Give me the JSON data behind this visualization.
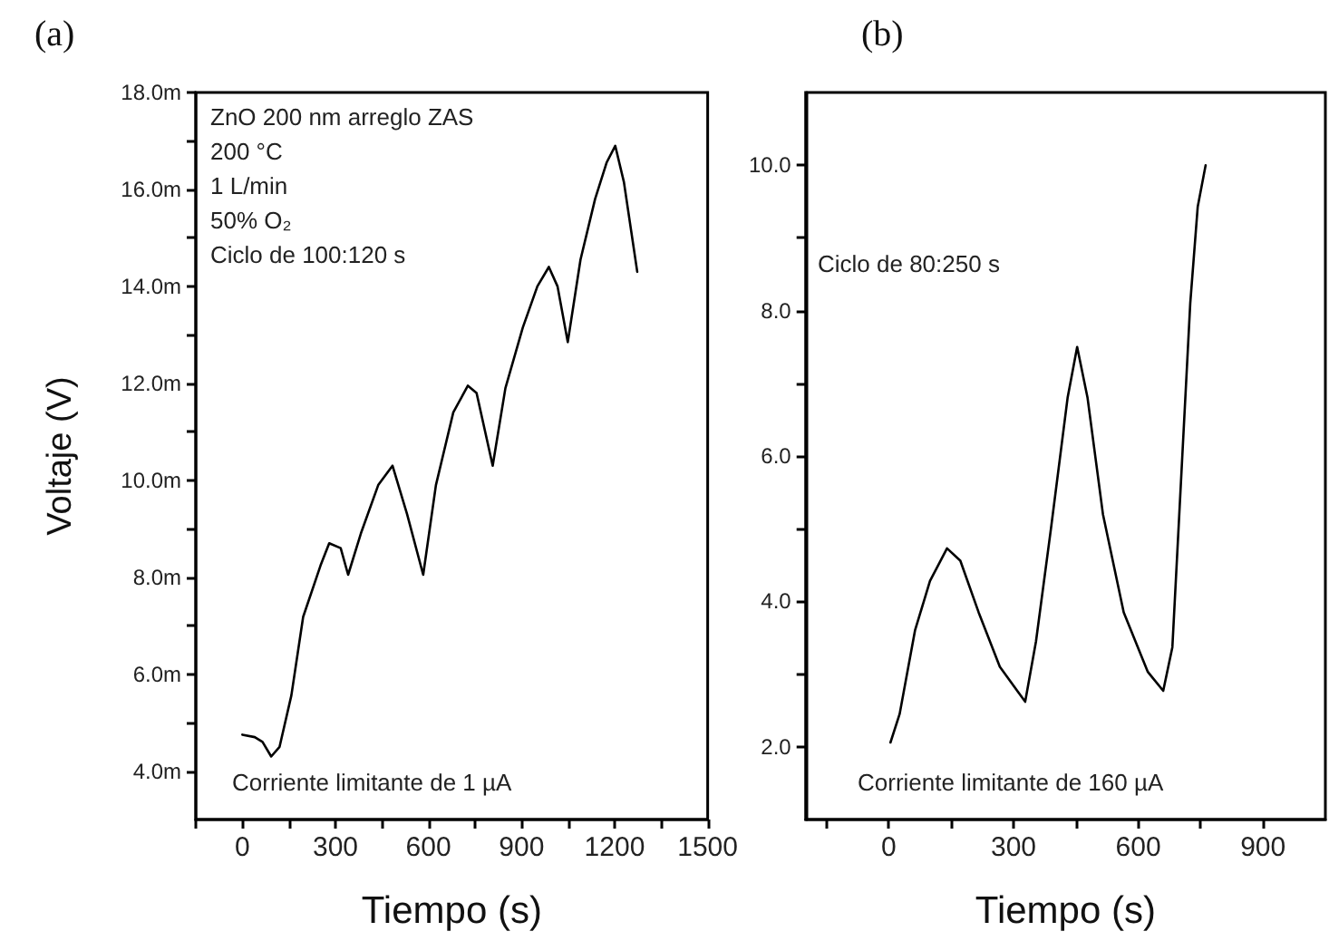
{
  "chart_data": [
    {
      "type": "line",
      "title": "(a)",
      "xlabel": "Tiempo (s)",
      "ylabel": "Voltaje (V)",
      "line_style": "solid",
      "marker": "none",
      "annotations": [
        "ZnO 200 nm arreglo ZAS",
        "200 °C",
        "1 L/min",
        "50% O₂",
        "Ciclo de 100:120 s",
        "Corriente limitante de 1 µA"
      ],
      "xlim": [
        -150,
        1500
      ],
      "ylim": [
        3,
        18
      ],
      "xticks": [
        {
          "value": -150,
          "label": null
        },
        0,
        {
          "value": 150,
          "label": null
        },
        300,
        {
          "value": 450,
          "label": null
        },
        600,
        {
          "value": 750,
          "label": null
        },
        900,
        {
          "value": 1050,
          "label": null
        },
        1200,
        {
          "value": 1350,
          "label": null
        },
        1500
      ],
      "yticks": [
        {
          "value": 4,
          "label": "4.0m"
        },
        {
          "value": 5,
          "label": null
        },
        {
          "value": 6,
          "label": "6.0m"
        },
        {
          "value": 7,
          "label": null
        },
        {
          "value": 8,
          "label": "8.0m"
        },
        {
          "value": 9,
          "label": null
        },
        {
          "value": 10,
          "label": "10.0m"
        },
        {
          "value": 11,
          "label": null
        },
        {
          "value": 12,
          "label": "12.0m"
        },
        {
          "value": 13,
          "label": null
        },
        {
          "value": 14,
          "label": "14.0m"
        },
        {
          "value": 15,
          "label": null
        },
        {
          "value": 16,
          "label": "16.0m"
        },
        {
          "value": 17,
          "label": null
        },
        {
          "value": 18,
          "label": "18.0m"
        }
      ],
      "series": [
        {
          "color": "#000000",
          "x": [
            0,
            40,
            65,
            93,
            120,
            158,
            196,
            252,
            280,
            317,
            341,
            382,
            438,
            484,
            531,
            583,
            624,
            680,
            727,
            755,
            807,
            848,
            904,
            951,
            988,
            1016,
            1049,
            1090,
            1137,
            1174,
            1202,
            1230,
            1273
          ],
          "values": [
            4.75,
            4.7,
            4.6,
            4.3,
            4.5,
            5.56,
            7.18,
            8.24,
            8.7,
            8.6,
            8.05,
            8.9,
            9.9,
            10.3,
            9.3,
            8.05,
            9.9,
            11.4,
            11.95,
            11.8,
            10.3,
            11.9,
            13.15,
            14.0,
            14.4,
            14.0,
            12.85,
            14.55,
            15.8,
            16.55,
            16.9,
            16.15,
            14.3
          ]
        }
      ]
    },
    {
      "type": "line",
      "title": "(b)",
      "xlabel": "Tiempo (s)",
      "line_style": "solid",
      "marker": "none",
      "annotations": [
        "Ciclo de 80:250 s",
        "Corriente limitante de 160 µA"
      ],
      "xlim": [
        -200,
        1050
      ],
      "ylim": [
        1,
        11
      ],
      "xticks": [
        {
          "value": -150,
          "label": null
        },
        0,
        {
          "value": 150,
          "label": null
        },
        300,
        {
          "value": 450,
          "label": null
        },
        600,
        {
          "value": 750,
          "label": null
        },
        900
      ],
      "yticks": [
        {
          "value": 2,
          "label": "2.0"
        },
        {
          "value": 3,
          "label": null
        },
        {
          "value": 4,
          "label": "4.0"
        },
        {
          "value": 5,
          "label": null
        },
        {
          "value": 6,
          "label": "6.0"
        },
        {
          "value": 7,
          "label": null
        },
        {
          "value": 8,
          "label": "8.0"
        },
        {
          "value": 9,
          "label": null
        },
        {
          "value": 10,
          "label": "10.0"
        }
      ],
      "series": [
        {
          "color": "#000000",
          "x": [
            4,
            26,
            63,
            99,
            140,
            172,
            216,
            267,
            328,
            354,
            390,
            430,
            453,
            478,
            515,
            565,
            623,
            660,
            682,
            725,
            743,
            762
          ],
          "values": [
            2.06,
            2.45,
            3.6,
            4.28,
            4.73,
            4.56,
            3.85,
            3.1,
            2.62,
            3.45,
            5.0,
            6.8,
            7.5,
            6.8,
            5.2,
            3.85,
            3.03,
            2.77,
            3.37,
            8.1,
            9.43,
            10.0
          ]
        }
      ]
    }
  ]
}
